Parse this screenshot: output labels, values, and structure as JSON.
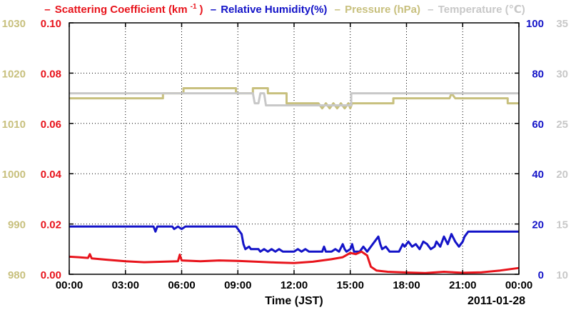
{
  "chart_data": {
    "type": "line",
    "legend": {
      "scattering": "Scattering Coefficient (km",
      "scattering_unit_exp": "-1",
      "scattering_close": ")",
      "rh": "Relative Humidity(%)",
      "pressure": "Pressure (hPa)",
      "temperature": "Temperature (℃)"
    },
    "xlabel": "Time (JST)",
    "date_label": "2011-01-28",
    "x_ticks": [
      "00:00",
      "03:00",
      "06:00",
      "09:00",
      "12:00",
      "15:00",
      "18:00",
      "21:00",
      "00:00"
    ],
    "xlim_hours": [
      0,
      24
    ],
    "axes": {
      "pressure": {
        "ticks": [
          "980",
          "990",
          "1000",
          "1010",
          "1020",
          "1030"
        ],
        "range": [
          980,
          1030
        ],
        "color": "#c8c07e"
      },
      "scattering": {
        "ticks": [
          "0.00",
          "0.02",
          "0.04",
          "0.06",
          "0.08",
          "0.10"
        ],
        "range": [
          0,
          0.1
        ],
        "color": "#e8141c"
      },
      "rh": {
        "ticks": [
          "0",
          "20",
          "40",
          "60",
          "80",
          "100"
        ],
        "range": [
          0,
          100
        ],
        "color": "#1414c8"
      },
      "temperature": {
        "ticks": [
          "10",
          "15",
          "20",
          "25",
          "30",
          "35"
        ],
        "range": [
          10,
          35
        ],
        "color": "#c8c8c8"
      }
    },
    "series": [
      {
        "name": "Pressure (hPa)",
        "axis": "pressure",
        "color": "#c8c07e",
        "points": [
          [
            0,
            1015
          ],
          [
            5,
            1015
          ],
          [
            5,
            1016
          ],
          [
            6.1,
            1016
          ],
          [
            6.1,
            1017
          ],
          [
            8.9,
            1017
          ],
          [
            8.9,
            1016
          ],
          [
            9.8,
            1016
          ],
          [
            9.8,
            1017
          ],
          [
            10.6,
            1017
          ],
          [
            10.6,
            1016
          ],
          [
            11.6,
            1016
          ],
          [
            11.6,
            1014
          ],
          [
            13.3,
            1014
          ],
          [
            13.5,
            1013
          ],
          [
            13.7,
            1014
          ],
          [
            13.9,
            1013
          ],
          [
            14.1,
            1014
          ],
          [
            14.3,
            1013
          ],
          [
            14.5,
            1014
          ],
          [
            14.7,
            1013
          ],
          [
            14.9,
            1014
          ],
          [
            15,
            1013
          ],
          [
            15.1,
            1014
          ],
          [
            17.3,
            1014
          ],
          [
            17.3,
            1015
          ],
          [
            20.3,
            1015
          ],
          [
            20.4,
            1016
          ],
          [
            20.6,
            1015
          ],
          [
            23.4,
            1015
          ],
          [
            23.4,
            1014
          ],
          [
            24,
            1014
          ]
        ]
      },
      {
        "name": "Temperature (℃)",
        "axis": "temperature",
        "color": "#c8c8c8",
        "points": [
          [
            0,
            28
          ],
          [
            9.8,
            28
          ],
          [
            9.9,
            27
          ],
          [
            10.1,
            27
          ],
          [
            10.2,
            28
          ],
          [
            10.4,
            28
          ],
          [
            10.5,
            26.8
          ],
          [
            15.05,
            26.8
          ],
          [
            15.05,
            28
          ],
          [
            24,
            28
          ]
        ]
      },
      {
        "name": "Relative Humidity(%)",
        "axis": "rh",
        "color": "#1414c8",
        "points": [
          [
            0,
            19
          ],
          [
            4.5,
            19
          ],
          [
            4.6,
            17
          ],
          [
            4.7,
            19
          ],
          [
            5.5,
            19
          ],
          [
            5.6,
            18
          ],
          [
            5.8,
            19
          ],
          [
            6.0,
            18
          ],
          [
            6.2,
            19
          ],
          [
            8.9,
            19
          ],
          [
            9.0,
            18
          ],
          [
            9.2,
            16
          ],
          [
            9.3,
            12
          ],
          [
            9.4,
            10
          ],
          [
            9.6,
            11
          ],
          [
            9.7,
            10
          ],
          [
            10.1,
            10
          ],
          [
            10.2,
            9
          ],
          [
            10.4,
            10
          ],
          [
            10.6,
            9
          ],
          [
            10.8,
            10
          ],
          [
            11.0,
            9
          ],
          [
            11.2,
            10
          ],
          [
            11.4,
            9
          ],
          [
            12.0,
            9
          ],
          [
            12.2,
            10
          ],
          [
            12.4,
            9
          ],
          [
            12.6,
            10
          ],
          [
            12.8,
            9
          ],
          [
            13.5,
            9
          ],
          [
            13.6,
            11
          ],
          [
            13.7,
            9
          ],
          [
            14.0,
            9
          ],
          [
            14.2,
            10
          ],
          [
            14.4,
            9
          ],
          [
            14.6,
            12
          ],
          [
            14.7,
            10
          ],
          [
            14.8,
            9
          ],
          [
            15.0,
            10
          ],
          [
            15.1,
            12
          ],
          [
            15.2,
            9
          ],
          [
            15.5,
            9
          ],
          [
            15.7,
            11
          ],
          [
            15.9,
            9
          ],
          [
            16.1,
            11
          ],
          [
            16.3,
            13
          ],
          [
            16.5,
            15
          ],
          [
            16.6,
            12
          ],
          [
            16.7,
            10
          ],
          [
            16.9,
            11
          ],
          [
            17.1,
            9
          ],
          [
            17.6,
            9
          ],
          [
            17.8,
            12
          ],
          [
            17.9,
            11
          ],
          [
            18.1,
            13
          ],
          [
            18.3,
            11
          ],
          [
            18.5,
            12
          ],
          [
            18.7,
            10
          ],
          [
            18.9,
            13
          ],
          [
            19.1,
            12
          ],
          [
            19.3,
            10
          ],
          [
            19.5,
            11
          ],
          [
            19.6,
            13
          ],
          [
            19.8,
            11
          ],
          [
            20.0,
            15
          ],
          [
            20.2,
            12
          ],
          [
            20.4,
            16
          ],
          [
            20.6,
            13
          ],
          [
            20.8,
            11
          ],
          [
            21.0,
            13
          ],
          [
            21.1,
            15
          ],
          [
            21.3,
            17
          ],
          [
            24,
            17
          ]
        ]
      },
      {
        "name": "Scattering Coefficient",
        "axis": "scattering",
        "color": "#e8141c",
        "points": [
          [
            0,
            0.007
          ],
          [
            0.5,
            0.0068
          ],
          [
            1.0,
            0.0065
          ],
          [
            1.1,
            0.008
          ],
          [
            1.2,
            0.0063
          ],
          [
            2,
            0.0058
          ],
          [
            3,
            0.0052
          ],
          [
            4,
            0.0048
          ],
          [
            5,
            0.005
          ],
          [
            5.8,
            0.0052
          ],
          [
            5.9,
            0.0078
          ],
          [
            6.0,
            0.0055
          ],
          [
            7,
            0.0052
          ],
          [
            8,
            0.0055
          ],
          [
            9,
            0.0053
          ],
          [
            10,
            0.005
          ],
          [
            11,
            0.0047
          ],
          [
            12,
            0.0045
          ],
          [
            13,
            0.005
          ],
          [
            14,
            0.006
          ],
          [
            14.6,
            0.0068
          ],
          [
            15.0,
            0.0085
          ],
          [
            15.3,
            0.008
          ],
          [
            15.6,
            0.009
          ],
          [
            15.9,
            0.0075
          ],
          [
            16.1,
            0.003
          ],
          [
            16.4,
            0.0015
          ],
          [
            17,
            0.001
          ],
          [
            18,
            0.0007
          ],
          [
            19,
            0.0005
          ],
          [
            20,
            0.001
          ],
          [
            21,
            0.0006
          ],
          [
            22,
            0.0008
          ],
          [
            23,
            0.0015
          ],
          [
            24,
            0.0025
          ]
        ]
      }
    ]
  }
}
